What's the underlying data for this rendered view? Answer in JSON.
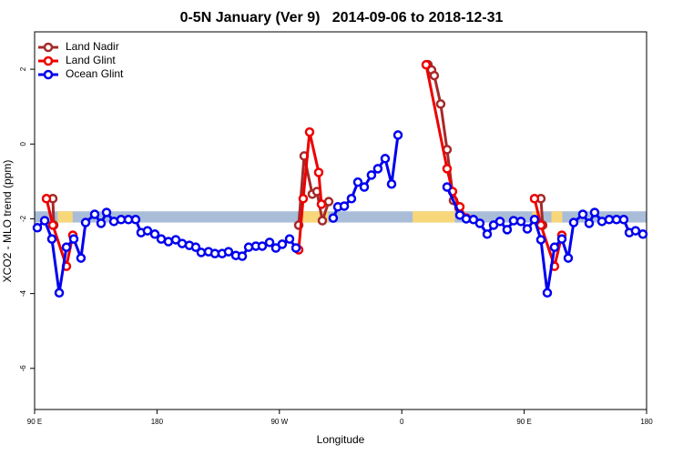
{
  "chart_data": {
    "type": "line",
    "title": "0-5N January (Ver 9)   2014-09-06 to 2018-12-31",
    "xlabel": "Longitude",
    "ylabel": "XCO2 - MLO trend (ppm)",
    "xlim": [
      90,
      540
    ],
    "ylim": [
      -7.1,
      3.0
    ],
    "xticks": [
      {
        "value": 90,
        "label": "90 E"
      },
      180,
      {
        "value": 270,
        "label": "90 W"
      },
      {
        "value": 360,
        "label": "0"
      },
      {
        "value": 450,
        "label": "90 E"
      },
      {
        "value": 540,
        "label": "180"
      }
    ],
    "yticks": [
      -6,
      -4,
      -2,
      0,
      2
    ],
    "legend": "top-left",
    "band": {
      "ylim": [
        -2.1,
        -1.8
      ],
      "color": "#a9bdd8",
      "land_color": "#f7d77a",
      "land_segments": [
        [
          107,
          118
        ],
        [
          285,
          306
        ],
        [
          368,
          399
        ],
        [
          456,
          462
        ],
        [
          470,
          478
        ]
      ]
    },
    "series": [
      {
        "name": "Land Nadir",
        "color": "#a52a2a",
        "x": [
          103.4,
          104.1,
          null,
          284.2,
          288.2,
          294.2,
          297.6,
          301.6,
          306.3,
          null,
          379.3,
          381.9,
          383.9,
          388.6,
          393.3,
          398.0,
          402.0,
          null,
          462.3,
          463.6
        ],
        "values": [
          -1.46,
          -2.17,
          null,
          -2.17,
          -0.32,
          -1.34,
          -1.27,
          -2.05,
          -1.54,
          null,
          2.12,
          1.98,
          1.83,
          1.07,
          -0.15,
          -1.51,
          -1.71,
          null,
          -1.46,
          -2.17
        ]
      },
      {
        "name": "Land Glint",
        "color": "#ee0000",
        "x": [
          98.7,
          103.4,
          113.4,
          118.1,
          null,
          284.2,
          287.5,
          292.2,
          298.9,
          300.9,
          null,
          377.9,
          393.3,
          397.3,
          402.7,
          407.4,
          null,
          457.6,
          462.3,
          472.3,
          477.7
        ],
        "values": [
          -1.46,
          -2.17,
          -3.27,
          -2.44,
          null,
          -2.83,
          -1.46,
          0.32,
          -0.76,
          -1.61,
          null,
          2.12,
          -0.66,
          -1.27,
          -1.68,
          -1.98,
          null,
          -1.46,
          -2.17,
          -3.27,
          -2.44
        ]
      },
      {
        "name": "Ocean Glint",
        "color": "#0000ee",
        "x": [
          92.0,
          97.4,
          102.7,
          108.1,
          113.4,
          118.8,
          124.1,
          127.5,
          134.2,
          138.9,
          142.9,
          148.3,
          153.6,
          159.0,
          164.3,
          168.3,
          173.0,
          178.4,
          183.1,
          188.4,
          193.8,
          198.5,
          203.8,
          208.5,
          212.5,
          217.9,
          222.6,
          227.9,
          232.6,
          238.0,
          242.7,
          247.4,
          252.7,
          257.4,
          262.8,
          267.4,
          272.1,
          277.5,
          282.2,
          null,
          309.6,
          313.0,
          317.7,
          323.0,
          327.7,
          332.4,
          337.7,
          342.4,
          347.8,
          352.5,
          357.2,
          null,
          393.3,
          402.7,
          407.4,
          412.7,
          417.4,
          422.8,
          427.5,
          432.2,
          437.5,
          442.2,
          447.6,
          452.3,
          457.6,
          462.3,
          467.0,
          472.3,
          477.7,
          482.4,
          486.4,
          493.1,
          497.8,
          501.8,
          507.2,
          512.5,
          517.9,
          523.2,
          527.3,
          531.9,
          537.3
        ],
        "values": [
          -2.24,
          -2.05,
          -2.54,
          -3.98,
          -2.76,
          -2.54,
          -3.05,
          -2.1,
          -1.88,
          -2.12,
          -1.83,
          -2.07,
          -2.02,
          -2.02,
          -2.02,
          -2.37,
          -2.32,
          -2.41,
          -2.54,
          -2.61,
          -2.56,
          -2.66,
          -2.71,
          -2.76,
          -2.9,
          -2.88,
          -2.93,
          -2.93,
          -2.88,
          -2.98,
          -3.0,
          -2.76,
          -2.73,
          -2.73,
          -2.63,
          -2.78,
          -2.68,
          -2.54,
          -2.78,
          null,
          -1.98,
          -1.68,
          -1.66,
          -1.46,
          -1.02,
          -1.15,
          -0.83,
          -0.66,
          -0.39,
          -1.07,
          0.24,
          null,
          -1.15,
          -1.9,
          -2.0,
          -2.02,
          -2.12,
          -2.41,
          -2.17,
          -2.07,
          -2.29,
          -2.05,
          -2.07,
          -2.27,
          -2.02,
          -2.56,
          -3.98,
          -2.76,
          -2.54,
          -3.05,
          -2.1,
          -1.88,
          -2.12,
          -1.83,
          -2.07,
          -2.02,
          -2.02,
          -2.02,
          -2.37,
          -2.32,
          -2.41
        ]
      }
    ]
  }
}
